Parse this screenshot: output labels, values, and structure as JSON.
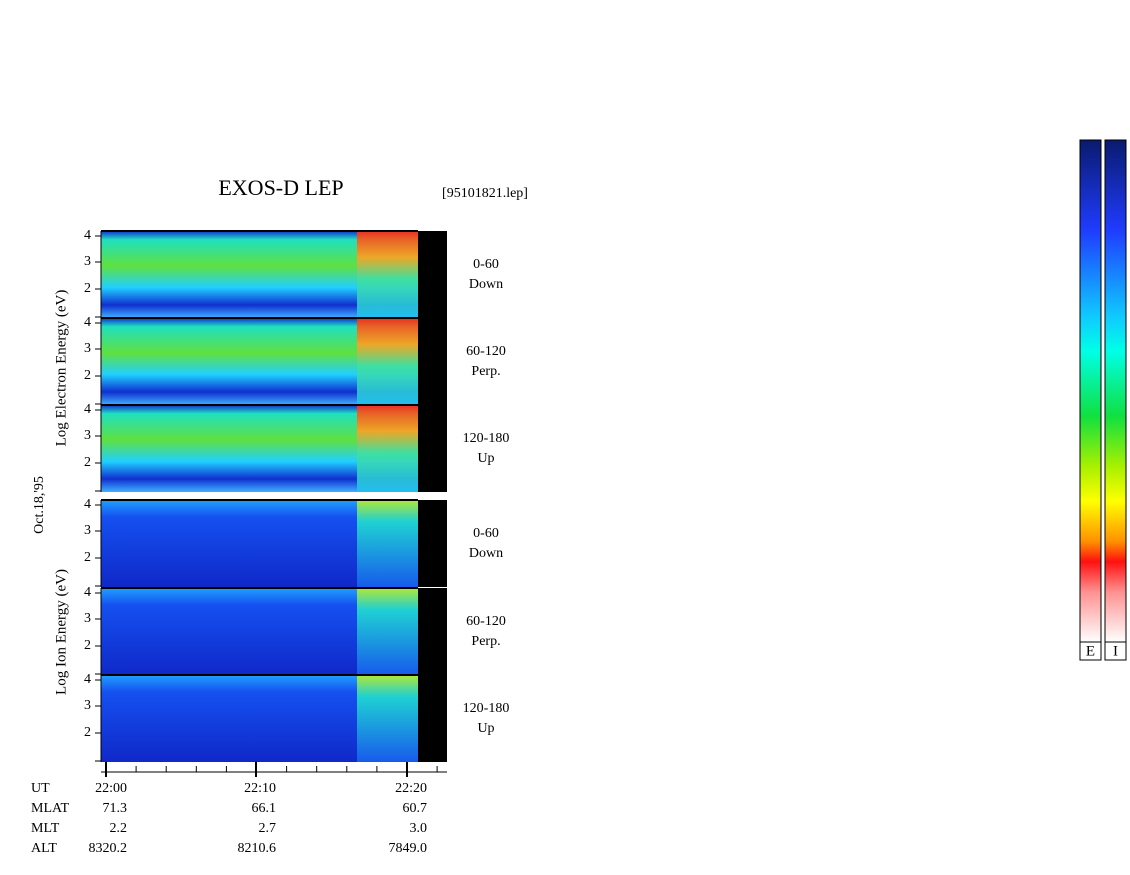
{
  "title": "EXOS-D LEP",
  "file_name": "[95101821.lep]",
  "date_label": "Oct.18,'95",
  "electron_axis_label": "Log  Electron  Energy (eV)",
  "ion_axis_label": "Log  Ion  Energy (eV)",
  "energy_ticks": [
    "4",
    "3",
    "2"
  ],
  "panels": [
    {
      "species": "electron",
      "angle": "0-60",
      "direction": "Down"
    },
    {
      "species": "electron",
      "angle": "60-120",
      "direction": "Perp."
    },
    {
      "species": "electron",
      "angle": "120-180",
      "direction": "Up"
    },
    {
      "species": "ion",
      "angle": "0-60",
      "direction": "Down"
    },
    {
      "species": "ion",
      "angle": "60-120",
      "direction": "Perp."
    },
    {
      "species": "ion",
      "angle": "120-180",
      "direction": "Up"
    }
  ],
  "footer": {
    "rows": [
      {
        "label": "UT",
        "values": [
          "22:00",
          "22:10",
          "22:20"
        ]
      },
      {
        "label": "MLAT",
        "values": [
          "71.3",
          "66.1",
          "60.7"
        ]
      },
      {
        "label": "MLT",
        "values": [
          "2.2",
          "2.7",
          "3.0"
        ]
      },
      {
        "label": "ALT",
        "values": [
          "8320.2",
          "8210.6",
          "7849.0"
        ]
      }
    ]
  },
  "colorbar_labels": [
    "E",
    "I"
  ]
}
